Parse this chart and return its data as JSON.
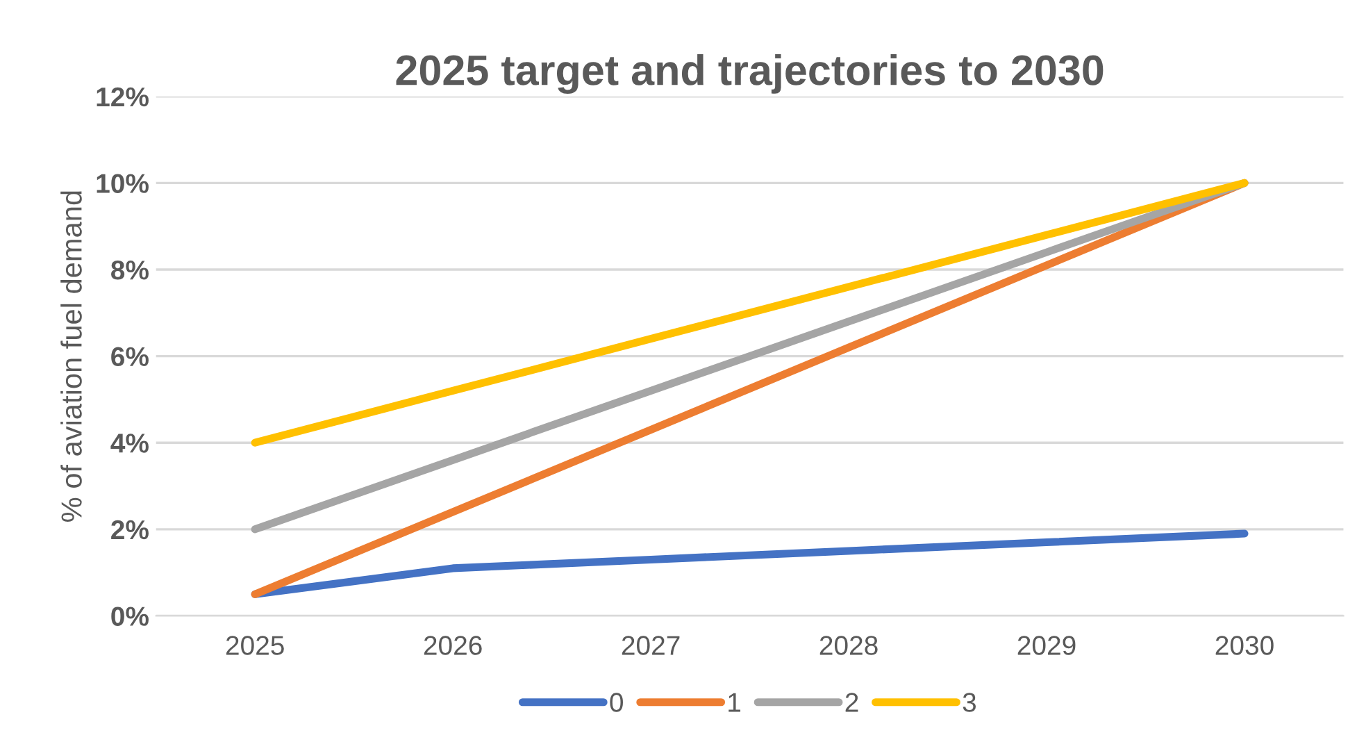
{
  "chart_data": {
    "type": "line",
    "title": "2025 target and trajectories to 2030",
    "ylabel": "% of aviation fuel demand",
    "categories": [
      "2025",
      "2026",
      "2027",
      "2028",
      "2029",
      "2030"
    ],
    "series": [
      {
        "name": "0",
        "color": "#4472c4",
        "values": [
          0.5,
          1.1,
          1.3,
          1.5,
          1.7,
          1.9
        ]
      },
      {
        "name": "1",
        "color": "#ed7d31",
        "values": [
          0.5,
          2.4,
          4.3,
          6.2,
          8.1,
          10
        ]
      },
      {
        "name": "2",
        "color": "#a5a5a5",
        "values": [
          2,
          3.6,
          5.2,
          6.8,
          8.4,
          10
        ]
      },
      {
        "name": "3",
        "color": "#ffc000",
        "values": [
          4,
          5.2,
          6.4,
          7.6,
          8.8,
          10
        ]
      }
    ],
    "ylim": [
      0,
      12
    ],
    "yticks": [
      {
        "value": 0,
        "label": "0%"
      },
      {
        "value": 2,
        "label": "2%"
      },
      {
        "value": 4,
        "label": "4%"
      },
      {
        "value": 6,
        "label": "6%"
      },
      {
        "value": 8,
        "label": "8%"
      },
      {
        "value": 10,
        "label": "10%"
      },
      {
        "value": 12,
        "label": "12%"
      }
    ],
    "grid": "y",
    "legend": "bottom",
    "marker": "none",
    "line_style": "solid"
  }
}
